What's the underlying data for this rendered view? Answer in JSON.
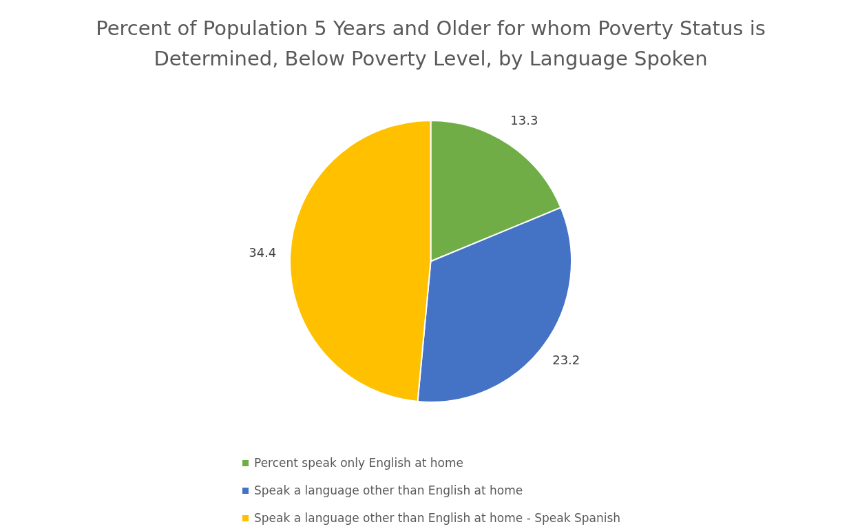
{
  "chart_data": {
    "type": "pie",
    "title": "Percent of Population 5 Years and Older for whom Poverty Status is Determined, Below Poverty Level, by Language Spoken",
    "categories": [
      "Percent speak only English at home",
      "Speak a language other than English at home",
      "Speak a language other than English at home  - Speak Spanish"
    ],
    "values": [
      13.3,
      23.2,
      34.4
    ],
    "colors": [
      "#70ad47",
      "#4472c4",
      "#ffc000"
    ],
    "data_labels": true,
    "legend": "bottom"
  }
}
